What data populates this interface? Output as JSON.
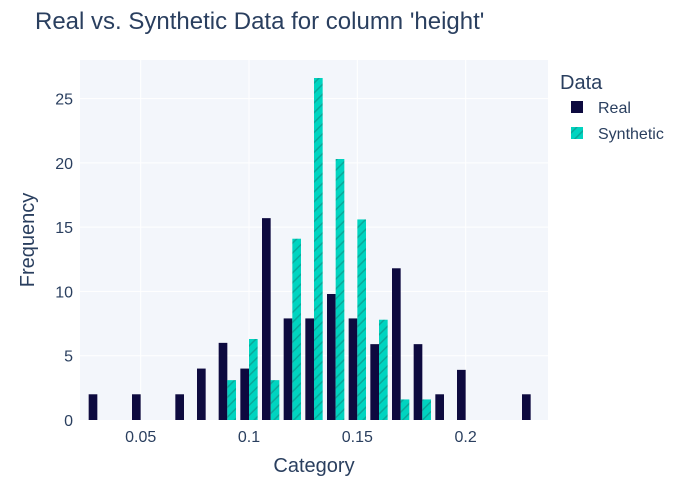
{
  "chart_data": {
    "type": "bar",
    "title": "Real vs. Synthetic Data for column 'height'",
    "xlabel": "Category",
    "ylabel": "Frequency",
    "xlim": [
      0.022,
      0.238
    ],
    "ylim": [
      0,
      28
    ],
    "xticks": [
      0.05,
      0.1,
      0.15,
      0.2
    ],
    "xtick_labels": [
      "0.05",
      "0.1",
      "0.15",
      "0.2"
    ],
    "yticks": [
      0,
      5,
      10,
      15,
      20,
      25
    ],
    "yticks_labels": [
      "0",
      "5",
      "10",
      "15",
      "20",
      "25"
    ],
    "bin_width": 0.01,
    "bin_centers": [
      0.03,
      0.04,
      0.05,
      0.06,
      0.07,
      0.08,
      0.09,
      0.1,
      0.11,
      0.12,
      0.13,
      0.14,
      0.15,
      0.16,
      0.17,
      0.18,
      0.19,
      0.2,
      0.21,
      0.22,
      0.23
    ],
    "legend": {
      "title": "Data",
      "position": "right"
    },
    "grid": true,
    "series": [
      {
        "name": "Real",
        "color": "#0d0a3f",
        "values": [
          2,
          0,
          2,
          0,
          2,
          4,
          6,
          4,
          15.7,
          7.9,
          7.9,
          9.8,
          7.9,
          5.9,
          11.8,
          5.9,
          2,
          3.9,
          0,
          0,
          2
        ]
      },
      {
        "name": "Synthetic",
        "color": "#00d4c0",
        "pattern": "diagonal-hatch",
        "values": [
          0,
          0,
          0,
          0,
          0,
          0,
          3.1,
          6.3,
          3.1,
          14.1,
          26.6,
          20.3,
          15.6,
          7.8,
          1.6,
          1.6,
          0,
          0,
          0,
          0,
          0
        ]
      }
    ]
  }
}
